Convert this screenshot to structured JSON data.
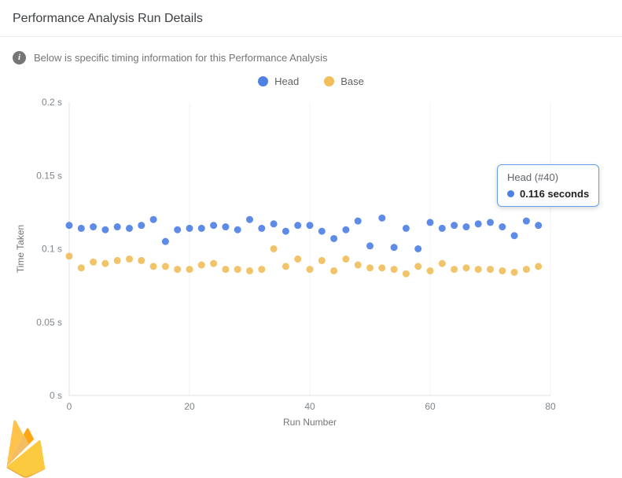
{
  "header": {
    "title": "Performance Analysis Run Details"
  },
  "info": {
    "text": "Below is specific timing information for this Performance Analysis",
    "icon_glyph": "i"
  },
  "legend": [
    {
      "label": "Head",
      "color": "#4f81e5"
    },
    {
      "label": "Base",
      "color": "#f0bf5c"
    }
  ],
  "tooltip": {
    "title": "Head (#40)",
    "value": "0.116 seconds",
    "series": "Head",
    "border_color": "#669df6"
  },
  "chart_data": {
    "type": "scatter",
    "title": "",
    "xlabel": "Run Number",
    "ylabel": "Time Taken",
    "xlim": [
      0,
      80
    ],
    "ylim": [
      0,
      0.2
    ],
    "grid": "vertical-only",
    "legend_position": "top-center",
    "x_ticks": [
      {
        "v": 0,
        "label": "0"
      },
      {
        "v": 20,
        "label": "20"
      },
      {
        "v": 40,
        "label": "40"
      },
      {
        "v": 60,
        "label": "60"
      },
      {
        "v": 80,
        "label": "80"
      }
    ],
    "y_ticks": [
      {
        "v": 0,
        "label": "0 s"
      },
      {
        "v": 0.05,
        "label": "0.05 s"
      },
      {
        "v": 0.1,
        "label": "0.1 s"
      },
      {
        "v": 0.15,
        "label": "0.15 s"
      },
      {
        "v": 0.2,
        "label": "0.2 s"
      }
    ],
    "series": [
      {
        "name": "Head",
        "color": "#4f81e5",
        "x": [
          0,
          2,
          4,
          6,
          8,
          10,
          12,
          14,
          16,
          18,
          20,
          22,
          24,
          26,
          28,
          30,
          32,
          34,
          36,
          38,
          40,
          42,
          44,
          46,
          48,
          50,
          52,
          54,
          56,
          58,
          60,
          62,
          64,
          66,
          68,
          70,
          72,
          74,
          76,
          78
        ],
        "values": [
          0.116,
          0.114,
          0.115,
          0.113,
          0.115,
          0.114,
          0.116,
          0.12,
          0.105,
          0.113,
          0.114,
          0.114,
          0.116,
          0.115,
          0.113,
          0.12,
          0.114,
          0.117,
          0.112,
          0.116,
          0.116,
          0.112,
          0.107,
          0.113,
          0.119,
          0.102,
          0.121,
          0.101,
          0.114,
          0.1,
          0.118,
          0.114,
          0.116,
          0.115,
          0.117,
          0.118,
          0.115,
          0.109,
          0.119,
          0.116
        ]
      },
      {
        "name": "Base",
        "color": "#f0bf5c",
        "x": [
          0,
          2,
          4,
          6,
          8,
          10,
          12,
          14,
          16,
          18,
          20,
          22,
          24,
          26,
          28,
          30,
          32,
          34,
          36,
          38,
          40,
          42,
          44,
          46,
          48,
          50,
          52,
          54,
          56,
          58,
          60,
          62,
          64,
          66,
          68,
          70,
          72,
          74,
          76,
          78
        ],
        "values": [
          0.095,
          0.087,
          0.091,
          0.09,
          0.092,
          0.093,
          0.092,
          0.088,
          0.088,
          0.086,
          0.086,
          0.089,
          0.09,
          0.086,
          0.086,
          0.085,
          0.086,
          0.1,
          0.088,
          0.093,
          0.086,
          0.092,
          0.085,
          0.093,
          0.089,
          0.087,
          0.087,
          0.086,
          0.083,
          0.088,
          0.085,
          0.09,
          0.086,
          0.087,
          0.086,
          0.086,
          0.085,
          0.084,
          0.086,
          0.088
        ]
      }
    ]
  }
}
